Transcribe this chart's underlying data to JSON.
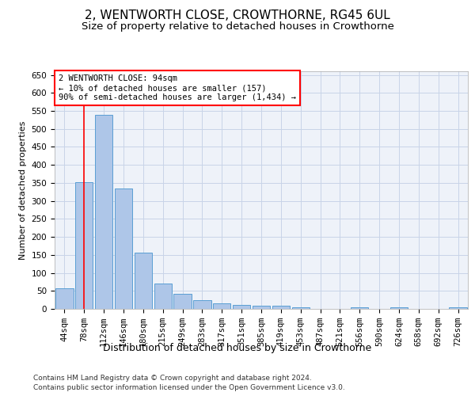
{
  "title": "2, WENTWORTH CLOSE, CROWTHORNE, RG45 6UL",
  "subtitle": "Size of property relative to detached houses in Crowthorne",
  "xlabel": "Distribution of detached houses by size in Crowthorne",
  "ylabel": "Number of detached properties",
  "bar_color": "#aec6e8",
  "bar_edge_color": "#5a9fd4",
  "categories": [
    "44sqm",
    "78sqm",
    "112sqm",
    "146sqm",
    "180sqm",
    "215sqm",
    "249sqm",
    "283sqm",
    "317sqm",
    "351sqm",
    "385sqm",
    "419sqm",
    "453sqm",
    "487sqm",
    "521sqm",
    "556sqm",
    "590sqm",
    "624sqm",
    "658sqm",
    "692sqm",
    "726sqm"
  ],
  "values": [
    57,
    352,
    538,
    335,
    157,
    70,
    42,
    25,
    16,
    10,
    8,
    8,
    5,
    0,
    0,
    5,
    0,
    5,
    0,
    0,
    5
  ],
  "ylim": [
    0,
    660
  ],
  "yticks": [
    0,
    50,
    100,
    150,
    200,
    250,
    300,
    350,
    400,
    450,
    500,
    550,
    600,
    650
  ],
  "red_line_x": 1,
  "annotation_text": "2 WENTWORTH CLOSE: 94sqm\n← 10% of detached houses are smaller (157)\n90% of semi-detached houses are larger (1,434) →",
  "footer_line1": "Contains HM Land Registry data © Crown copyright and database right 2024.",
  "footer_line2": "Contains public sector information licensed under the Open Government Licence v3.0.",
  "background_color": "#eef2f9",
  "grid_color": "#c8d4e8",
  "title_fontsize": 11,
  "subtitle_fontsize": 9.5,
  "xlabel_fontsize": 9,
  "ylabel_fontsize": 8,
  "tick_fontsize": 7.5,
  "footer_fontsize": 6.5,
  "annotation_fontsize": 7.5
}
